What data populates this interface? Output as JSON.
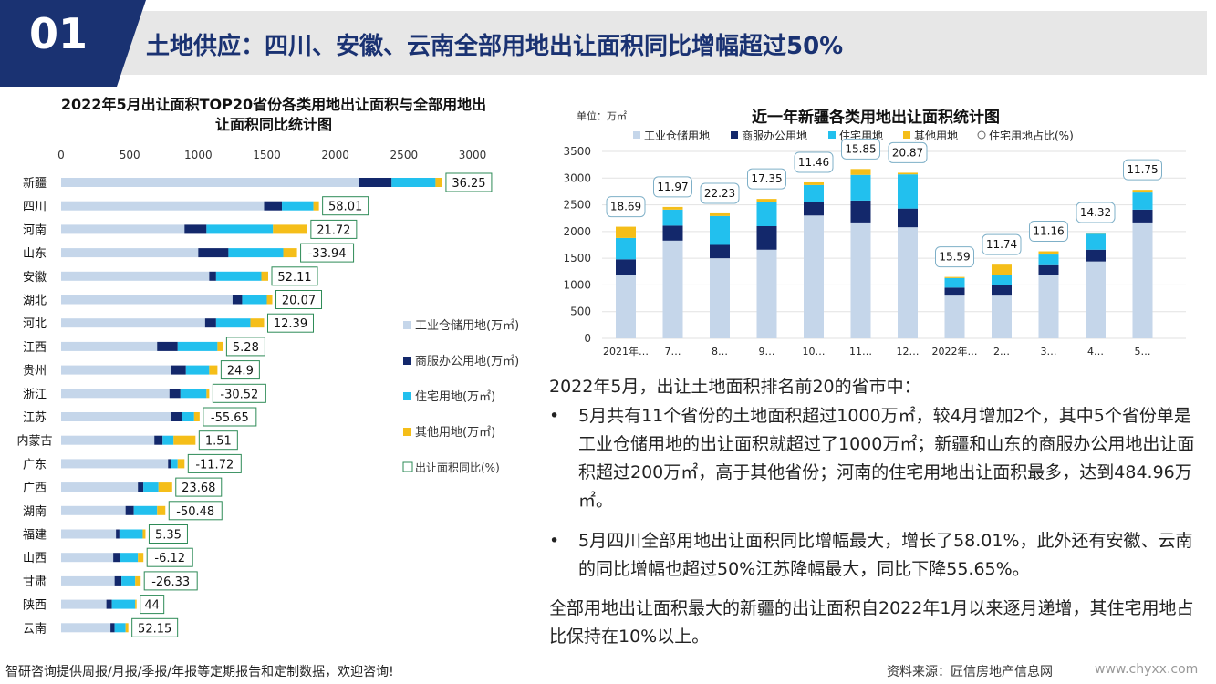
{
  "header": {
    "number": "01",
    "title": "土地供应：四川、安徽、云南全部用地出让面积同比增幅超过50%"
  },
  "left_chart_title": "2022年5月出让面积TOP20省份各类用地出让面积与全部用地出让面积同比统计图",
  "right_chart_title": "近一年新疆各类用地出让面积统计图",
  "right_chart_unit": "单位：万㎡",
  "colors": {
    "industrial": "#c5d6ea",
    "commercial": "#13286b",
    "residential": "#22c0ee",
    "other": "#f5be19",
    "navy": "#1a3272",
    "box_border": "#2e8b57"
  },
  "chart_data": [
    {
      "type": "bar",
      "orientation": "horizontal",
      "stacked": true,
      "title": "2022年5月出让面积TOP20省份各类用地出让面积与全部用地出让面积同比统计图",
      "xlim": [
        0,
        3000
      ],
      "x_ticks": [
        "0",
        "500",
        "1000",
        "1500",
        "2000",
        "2500",
        "3000"
      ],
      "categories": [
        "新疆",
        "四川",
        "河南",
        "山东",
        "安徽",
        "湖北",
        "河北",
        "江西",
        "贵州",
        "浙江",
        "江苏",
        "内蒙古",
        "广东",
        "广西",
        "湖南",
        "福建",
        "山西",
        "甘肃",
        "陕西",
        "云南"
      ],
      "series": [
        {
          "name": "工业仓储用地(万㎡)",
          "values": [
            2170,
            1480,
            900,
            1000,
            1080,
            1250,
            1050,
            700,
            800,
            790,
            800,
            680,
            780,
            560,
            470,
            400,
            380,
            390,
            330,
            360
          ]
        },
        {
          "name": "商服办公用地(万㎡)",
          "values": [
            240,
            130,
            160,
            220,
            50,
            70,
            80,
            150,
            110,
            80,
            80,
            60,
            20,
            40,
            60,
            25,
            50,
            50,
            40,
            30
          ]
        },
        {
          "name": "住宅用地(万㎡)",
          "values": [
            320,
            230,
            485,
            400,
            330,
            180,
            250,
            290,
            170,
            190,
            90,
            80,
            50,
            110,
            170,
            170,
            130,
            100,
            170,
            80
          ]
        },
        {
          "name": "其他用地(万㎡)",
          "values": [
            50,
            40,
            250,
            100,
            50,
            40,
            100,
            40,
            60,
            20,
            40,
            160,
            50,
            100,
            60,
            20,
            40,
            40,
            10,
            20
          ]
        }
      ],
      "ratio": {
        "name": "出让面积同比(%)",
        "values": [
          "36.25",
          "58.01",
          "21.72",
          "-33.94",
          "52.11",
          "20.07",
          "12.39",
          "5.28",
          "24.9",
          "-30.52",
          "-55.65",
          "1.51",
          "-11.72",
          "23.68",
          "-50.48",
          "5.35",
          "-6.12",
          "-26.33",
          "44",
          "52.15"
        ]
      },
      "legend_position": "right"
    },
    {
      "type": "bar",
      "stacked": true,
      "title": "近一年新疆各类用地出让面积统计图",
      "ylim": [
        0,
        3500
      ],
      "y_ticks": [
        "0",
        "500",
        "1000",
        "1500",
        "2000",
        "2500",
        "3000",
        "3500"
      ],
      "categories": [
        "2021年…",
        "7…",
        "8…",
        "9…",
        "10…",
        "11…",
        "12…",
        "2022年…",
        "2…",
        "3…",
        "4…",
        "5…"
      ],
      "series": [
        {
          "name": "工业仓储用地",
          "values": [
            1180,
            1830,
            1500,
            1660,
            2300,
            2170,
            2080,
            800,
            800,
            1190,
            1440,
            2170
          ]
        },
        {
          "name": "商服办公用地",
          "values": [
            300,
            280,
            250,
            440,
            250,
            410,
            350,
            150,
            200,
            180,
            220,
            240
          ]
        },
        {
          "name": "住宅用地",
          "values": [
            400,
            300,
            540,
            460,
            320,
            480,
            640,
            180,
            190,
            200,
            300,
            320
          ]
        },
        {
          "name": "其他用地",
          "values": [
            210,
            50,
            50,
            50,
            50,
            110,
            30,
            20,
            190,
            60,
            20,
            50
          ]
        }
      ],
      "ratio": {
        "name": "住宅用地占比(%)",
        "values": [
          "18.69",
          "11.97",
          "22.23",
          "17.35",
          "11.46",
          "15.85",
          "20.87",
          "15.59",
          "11.74",
          "11.16",
          "14.32",
          "11.75"
        ]
      },
      "legend_position": "top"
    }
  ],
  "text": {
    "intro": "2022年5月，出让土地面积排名前20的省市中：",
    "bullet1": "5月共有11个省份的土地面积超过1000万㎡，较4月增加2个，其中5个省份单是工业仓储用地的出让面积就超过了1000万㎡；新疆和山东的商服办公用地出让面积超过200万㎡，高于其他省份；河南的住宅用地出让面积最多，达到484.96万㎡。",
    "bullet2": "5月四川全部用地出让面积同比增幅最大，增长了58.01%，此外还有安徽、云南的同比增幅也超过50%江苏降幅最大，同比下降55.65%。",
    "conclusion": "全部用地出让面积最大的新疆的出让面积自2022年1月以来逐月递增，其住宅用地占比保持在10%以上。"
  },
  "footer": {
    "left": "智研咨询提供周报/月报/季报/年报等定期报告和定制数据，欢迎咨询!",
    "source": "资料来源：匠信房地产信息网",
    "url": "www.chyxx.com"
  }
}
